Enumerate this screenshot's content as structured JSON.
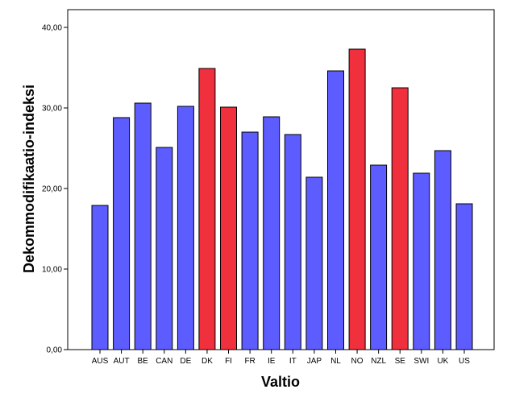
{
  "chart_data": {
    "type": "bar",
    "title": "",
    "xlabel": "Valtio",
    "ylabel": "Dekommodifikaatio-indeksi",
    "ylim": [
      0,
      40
    ],
    "y_ticks": [
      0,
      10,
      20,
      30,
      40
    ],
    "y_tick_labels": [
      "0,00",
      "10,00",
      "20,00",
      "30,00",
      "40,00"
    ],
    "grid": false,
    "categories": [
      "AUS",
      "AUT",
      "BE",
      "CAN",
      "DE",
      "DK",
      "FI",
      "FR",
      "IE",
      "IT",
      "JAP",
      "NL",
      "NO",
      "NZL",
      "SE",
      "SWI",
      "UK",
      "US"
    ],
    "values": [
      17.9,
      28.8,
      30.6,
      25.1,
      30.2,
      34.9,
      30.1,
      27.0,
      28.9,
      26.7,
      21.4,
      34.6,
      37.3,
      22.9,
      32.5,
      21.9,
      24.7,
      18.1
    ],
    "highlighted": [
      "DK",
      "FI",
      "NO",
      "SE"
    ],
    "colors": {
      "default_bar": "#5c5cff",
      "highlight_bar": "#f0303c",
      "outline": "#000000",
      "background": "#ffffff"
    }
  }
}
